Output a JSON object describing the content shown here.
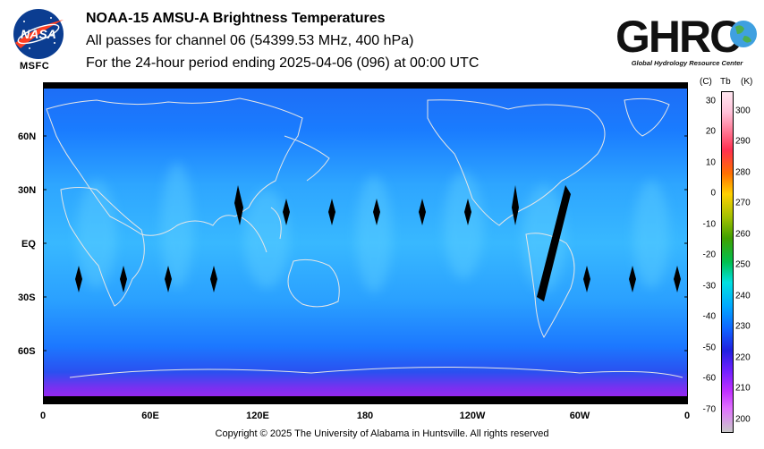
{
  "header": {
    "title": "NOAA-15 AMSU-A Brightness Temperatures",
    "subtitle": "All passes for channel 06 (54399.53 MHz, 400 hPa)",
    "period": "For the 24-hour period ending 2025-04-06 (096) at 00:00 UTC"
  },
  "logos": {
    "nasa_text": "NASA",
    "nasa_caption": "MSFC",
    "ghrc_text": "GHRC",
    "ghrc_caption": "Global Hydrology Resource Center"
  },
  "map": {
    "lat_labels": [
      "60N",
      "30N",
      "EQ",
      "30S",
      "60S"
    ],
    "lon_labels": [
      "0",
      "60E",
      "120E",
      "180",
      "120W",
      "60W",
      "0"
    ]
  },
  "colorbar": {
    "header_c": "(C)",
    "header_tb": "Tb",
    "header_k": "(K)",
    "celsius_ticks": [
      "30",
      "20",
      "10",
      "0",
      "-10",
      "-20",
      "-30",
      "-40",
      "-50",
      "-60",
      "-70"
    ],
    "kelvin_ticks": [
      "300",
      "290",
      "280",
      "270",
      "260",
      "250",
      "240",
      "230",
      "220",
      "210",
      "200"
    ]
  },
  "colors": {
    "map_base": "#1a8cff",
    "band_light": "#2fb4ff",
    "polar_south": "#a020f0",
    "coast": "#e0e0e0"
  },
  "footer": {
    "copyright": "Copyright © 2025 The University of Alabama in Huntsville.  All rights reserved"
  }
}
